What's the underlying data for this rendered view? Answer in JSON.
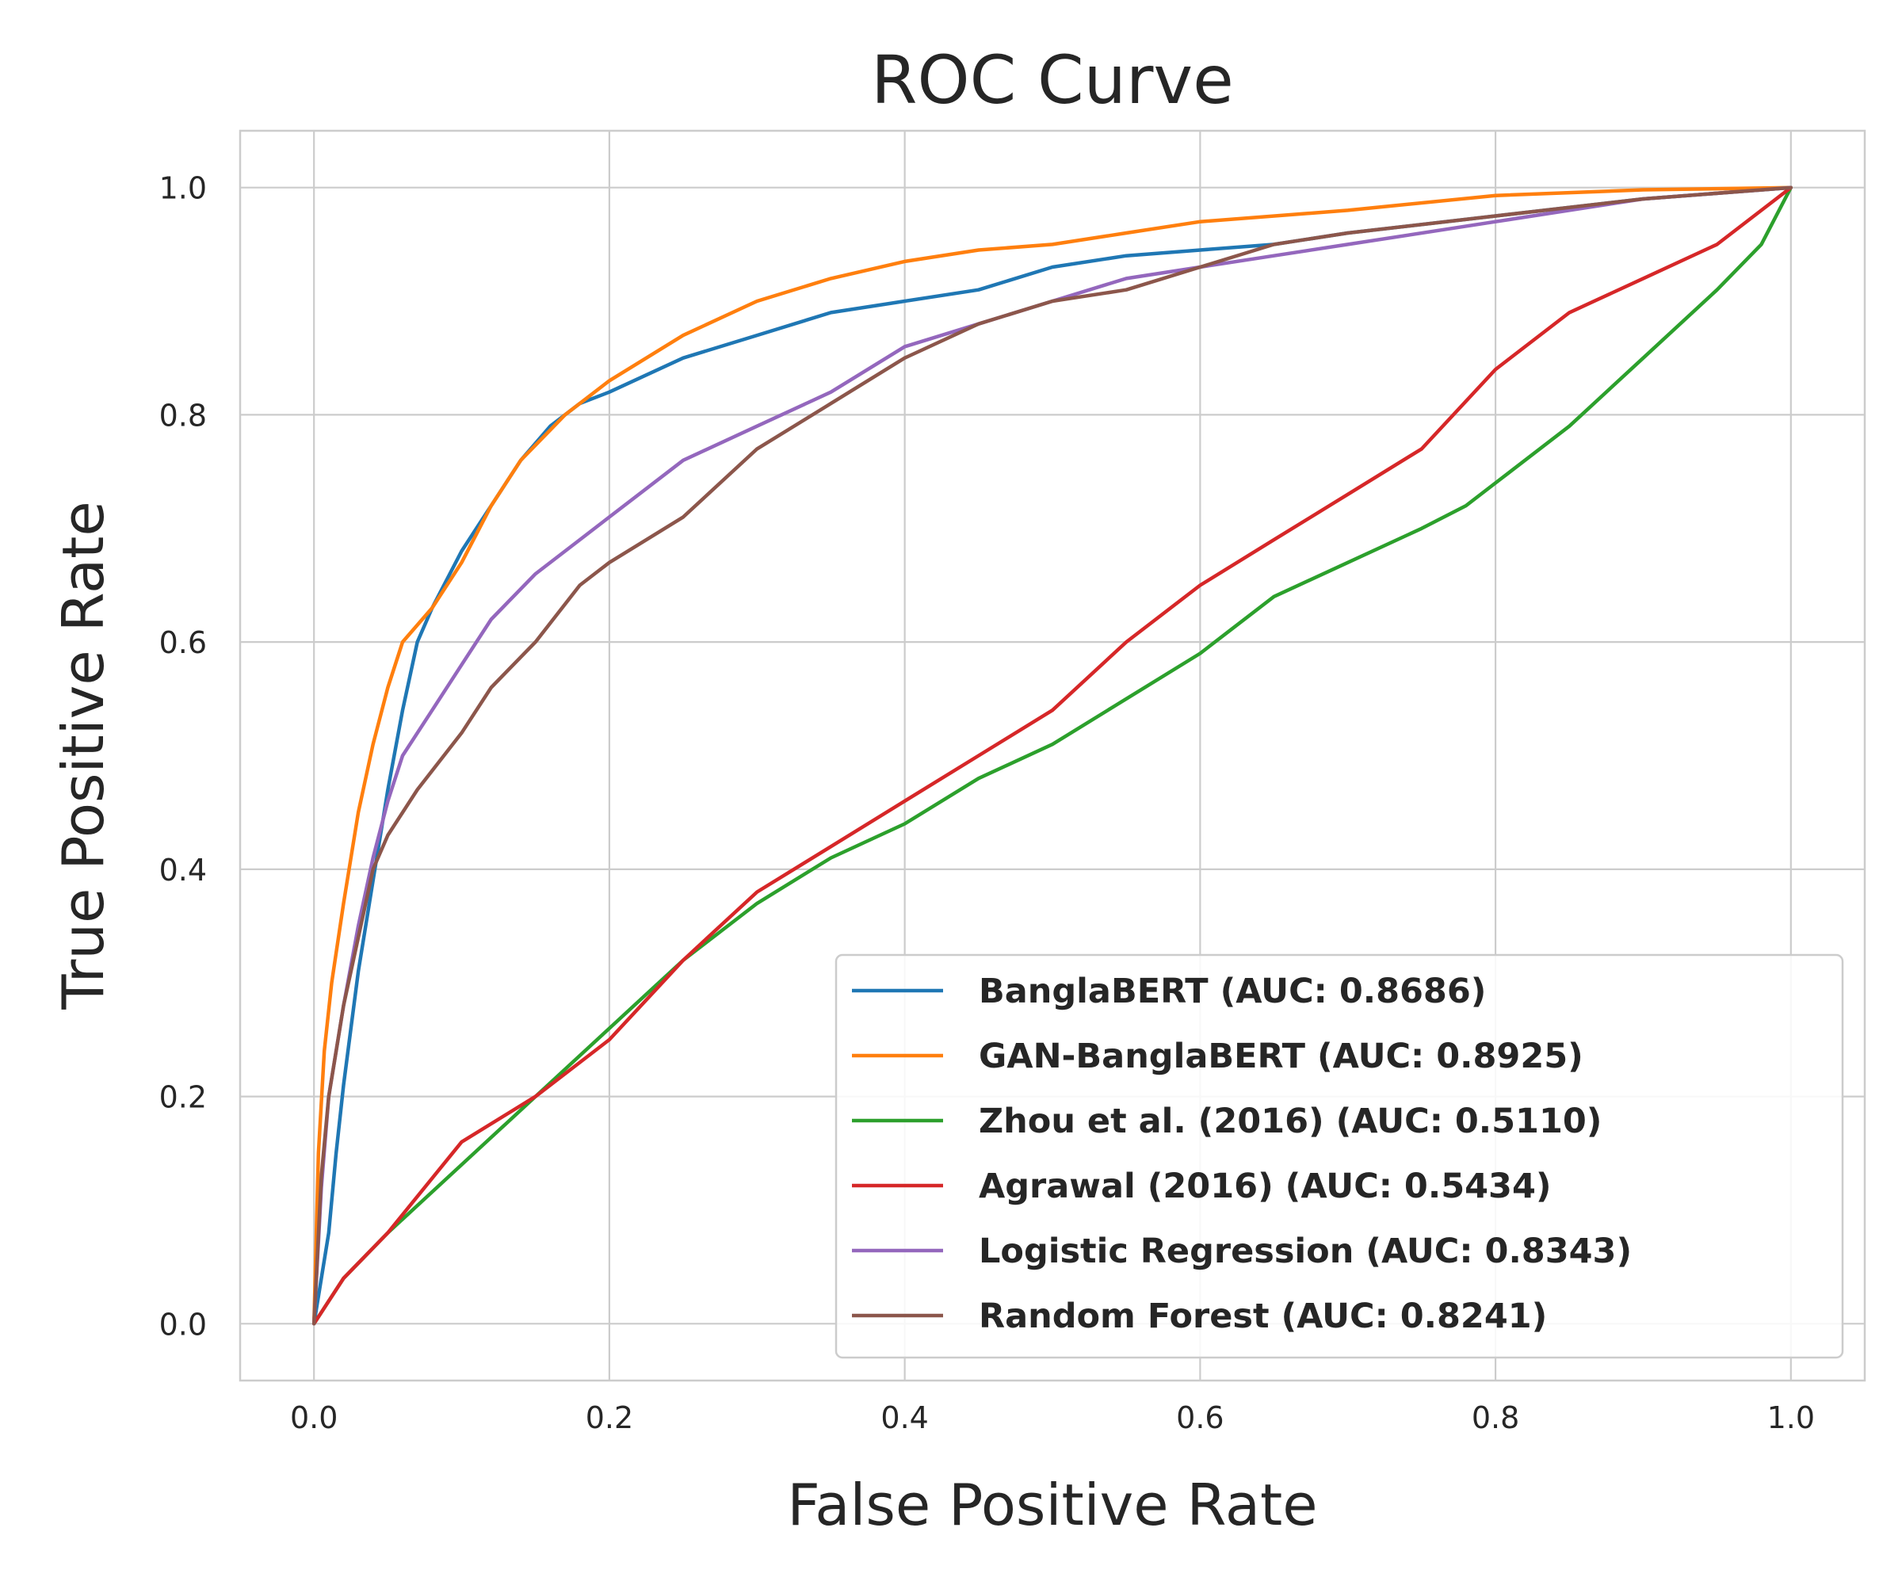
{
  "chart_data": {
    "type": "line",
    "title": "ROC Curve",
    "xlabel": "False Positive Rate",
    "ylabel": "True Positive Rate",
    "xlim": [
      -0.05,
      1.05
    ],
    "ylim": [
      -0.05,
      1.05
    ],
    "xticks": [
      0.0,
      0.2,
      0.4,
      0.6,
      0.8,
      1.0
    ],
    "yticks": [
      0.0,
      0.2,
      0.4,
      0.6,
      0.8,
      1.0
    ],
    "xtick_labels": [
      "0.0",
      "0.2",
      "0.4",
      "0.6",
      "0.8",
      "1.0"
    ],
    "ytick_labels": [
      "0.0",
      "0.2",
      "0.4",
      "0.6",
      "0.8",
      "1.0"
    ],
    "grid": true,
    "legend_position": "lower-right",
    "series": [
      {
        "name": "BanglaBERT (AUC: 0.8686)",
        "color": "#1f77b4",
        "x": [
          0,
          0.005,
          0.01,
          0.015,
          0.02,
          0.03,
          0.04,
          0.05,
          0.06,
          0.07,
          0.08,
          0.1,
          0.12,
          0.14,
          0.16,
          0.18,
          0.2,
          0.25,
          0.3,
          0.35,
          0.4,
          0.45,
          0.5,
          0.55,
          0.6,
          0.65,
          0.7,
          0.8,
          0.9,
          0.95,
          1.0
        ],
        "y": [
          0,
          0.04,
          0.08,
          0.15,
          0.21,
          0.31,
          0.39,
          0.47,
          0.54,
          0.6,
          0.63,
          0.68,
          0.72,
          0.76,
          0.79,
          0.81,
          0.82,
          0.85,
          0.87,
          0.89,
          0.9,
          0.91,
          0.93,
          0.94,
          0.945,
          0.95,
          0.96,
          0.975,
          0.99,
          0.995,
          1.0
        ]
      },
      {
        "name": "GAN-BanglaBERT (AUC: 0.8925)",
        "color": "#ff7f0e",
        "x": [
          0,
          0.003,
          0.007,
          0.012,
          0.02,
          0.03,
          0.04,
          0.05,
          0.06,
          0.08,
          0.1,
          0.12,
          0.14,
          0.17,
          0.2,
          0.25,
          0.3,
          0.35,
          0.4,
          0.45,
          0.5,
          0.55,
          0.6,
          0.7,
          0.8,
          0.9,
          1.0
        ],
        "y": [
          0,
          0.15,
          0.24,
          0.3,
          0.37,
          0.45,
          0.51,
          0.56,
          0.6,
          0.63,
          0.67,
          0.72,
          0.76,
          0.8,
          0.83,
          0.87,
          0.9,
          0.92,
          0.935,
          0.945,
          0.95,
          0.96,
          0.97,
          0.98,
          0.993,
          0.998,
          1.0
        ]
      },
      {
        "name": "Zhou et al. (2016) (AUC: 0.5110)",
        "color": "#2ca02c",
        "x": [
          0,
          0.02,
          0.05,
          0.1,
          0.15,
          0.2,
          0.25,
          0.3,
          0.35,
          0.4,
          0.45,
          0.5,
          0.55,
          0.6,
          0.62,
          0.65,
          0.7,
          0.75,
          0.78,
          0.8,
          0.85,
          0.9,
          0.95,
          0.98,
          1.0
        ],
        "y": [
          0,
          0.04,
          0.08,
          0.14,
          0.2,
          0.26,
          0.32,
          0.37,
          0.41,
          0.44,
          0.48,
          0.51,
          0.55,
          0.59,
          0.61,
          0.64,
          0.67,
          0.7,
          0.72,
          0.74,
          0.79,
          0.85,
          0.91,
          0.95,
          1.0
        ]
      },
      {
        "name": "Agrawal (2016) (AUC: 0.5434)",
        "color": "#d62728",
        "x": [
          0,
          0.02,
          0.05,
          0.1,
          0.15,
          0.2,
          0.25,
          0.3,
          0.35,
          0.4,
          0.45,
          0.5,
          0.55,
          0.6,
          0.65,
          0.7,
          0.75,
          0.8,
          0.85,
          0.9,
          0.95,
          0.98,
          1.0
        ],
        "y": [
          0,
          0.04,
          0.08,
          0.16,
          0.2,
          0.25,
          0.32,
          0.38,
          0.42,
          0.46,
          0.5,
          0.54,
          0.6,
          0.65,
          0.69,
          0.73,
          0.77,
          0.84,
          0.89,
          0.92,
          0.95,
          0.98,
          1.0
        ]
      },
      {
        "name": "Logistic Regression (AUC: 0.8343)",
        "color": "#9467bd",
        "x": [
          0,
          0.005,
          0.01,
          0.02,
          0.03,
          0.04,
          0.05,
          0.06,
          0.08,
          0.1,
          0.12,
          0.15,
          0.18,
          0.2,
          0.25,
          0.3,
          0.35,
          0.4,
          0.45,
          0.5,
          0.55,
          0.6,
          0.65,
          0.7,
          0.8,
          0.9,
          1.0
        ],
        "y": [
          0,
          0.12,
          0.2,
          0.28,
          0.35,
          0.41,
          0.46,
          0.5,
          0.54,
          0.58,
          0.62,
          0.66,
          0.69,
          0.71,
          0.76,
          0.79,
          0.82,
          0.86,
          0.88,
          0.9,
          0.92,
          0.93,
          0.94,
          0.95,
          0.97,
          0.99,
          1.0
        ]
      },
      {
        "name": "Random Forest (AUC: 0.8241)",
        "color": "#8c564b",
        "x": [
          0,
          0.005,
          0.01,
          0.02,
          0.03,
          0.04,
          0.05,
          0.07,
          0.1,
          0.12,
          0.15,
          0.18,
          0.2,
          0.25,
          0.3,
          0.35,
          0.4,
          0.45,
          0.5,
          0.55,
          0.6,
          0.65,
          0.7,
          0.8,
          0.9,
          1.0
        ],
        "y": [
          0,
          0.13,
          0.2,
          0.28,
          0.34,
          0.4,
          0.43,
          0.47,
          0.52,
          0.56,
          0.6,
          0.65,
          0.67,
          0.71,
          0.77,
          0.81,
          0.85,
          0.88,
          0.9,
          0.91,
          0.93,
          0.95,
          0.96,
          0.975,
          0.99,
          1.0
        ]
      }
    ]
  }
}
